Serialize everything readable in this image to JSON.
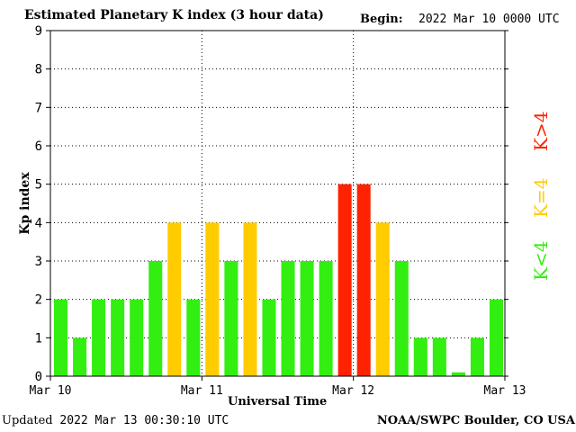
{
  "header": {
    "title": "Estimated Planetary K index (3 hour data)",
    "begin_label": "Begin:",
    "begin_value": "2022 Mar 10 0000 UTC"
  },
  "footer": {
    "updated_label": "Updated",
    "updated_value": "2022 Mar 13 00:30:10 UTC",
    "credit": "NOAA/SWPC Boulder, CO USA"
  },
  "legend": {
    "below": "K<4",
    "equal": "K=4",
    "above": "K>4"
  },
  "colors": {
    "below": "#33ee11",
    "equal": "#ffcc00",
    "above": "#ff2200",
    "grid": "#000000"
  },
  "chart_data": {
    "type": "bar",
    "title": "Estimated Planetary K index (3 hour data)",
    "xlabel": "Universal Time",
    "ylabel": "Kp index",
    "ylim": [
      0,
      9
    ],
    "yticks": [
      "0",
      "1",
      "2",
      "3",
      "4",
      "5",
      "6",
      "7",
      "8",
      "9"
    ],
    "xticks": [
      "Mar 10",
      "Mar 11",
      "Mar 12",
      "Mar 13"
    ],
    "grid": true,
    "bins_per_day": 8,
    "values": [
      2,
      1,
      2,
      2,
      2,
      3,
      4,
      2,
      4,
      3,
      4,
      2,
      3,
      3,
      3,
      5,
      5,
      4,
      3,
      1,
      1,
      0.1,
      1,
      2
    ]
  }
}
